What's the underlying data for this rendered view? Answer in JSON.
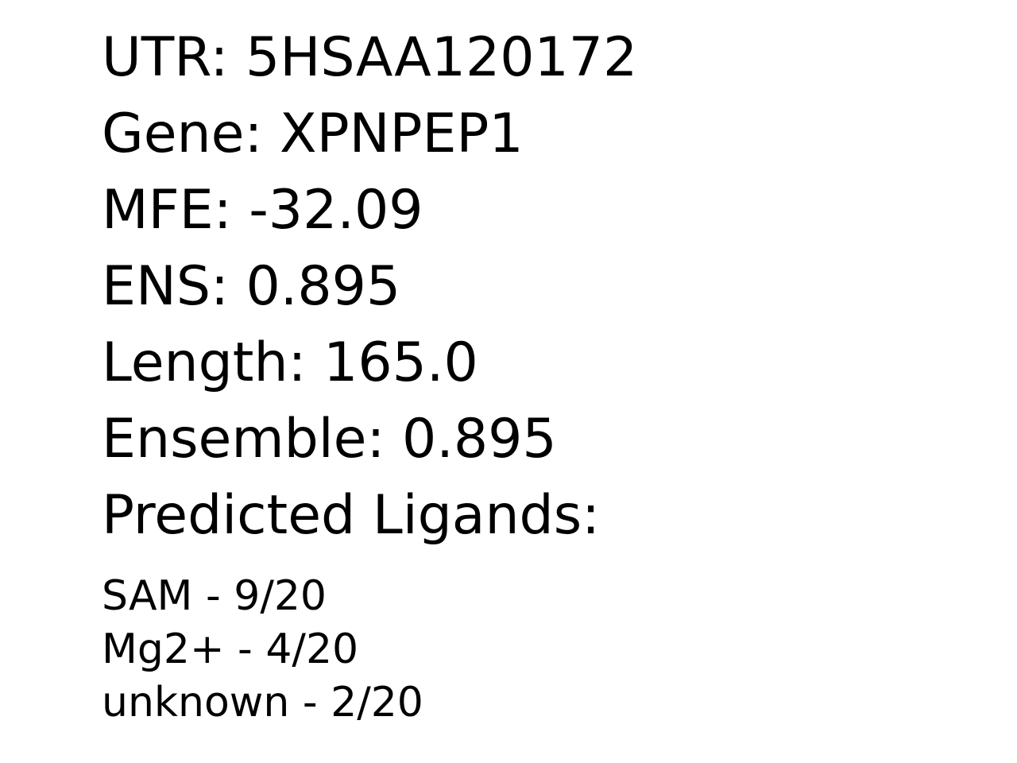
{
  "info": {
    "utr": "UTR: 5HSAA120172",
    "gene": "Gene: XPNPEP1",
    "mfe": "MFE: -32.09",
    "ens": "ENS: 0.895",
    "length": "Length: 165.0",
    "ensemble": "Ensemble: 0.895",
    "ligands_heading": "Predicted Ligands:"
  },
  "ligands": [
    "SAM - 9/20",
    "Mg2+ - 4/20",
    "unknown - 2/20"
  ]
}
